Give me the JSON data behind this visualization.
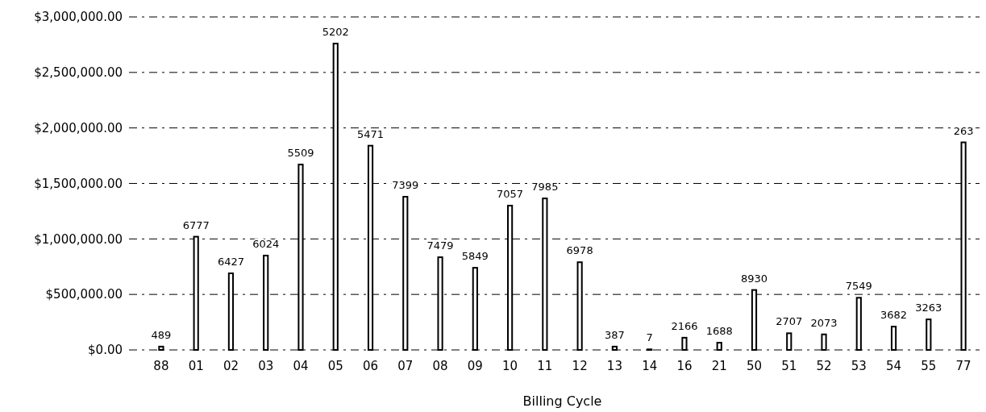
{
  "chart_data": {
    "type": "bar",
    "xlabel": "Billing Cycle",
    "categories": [
      "88",
      "01",
      "02",
      "03",
      "04",
      "05",
      "06",
      "07",
      "08",
      "09",
      "10",
      "11",
      "12",
      "13",
      "14",
      "16",
      "21",
      "50",
      "51",
      "52",
      "53",
      "54",
      "55",
      "77"
    ],
    "values": [
      30000,
      1020000,
      690000,
      850000,
      1670000,
      2760000,
      1840000,
      1380000,
      835000,
      740000,
      1300000,
      1365000,
      790000,
      30000,
      5000,
      110000,
      65000,
      540000,
      150000,
      140000,
      470000,
      210000,
      275000,
      1870000
    ],
    "color": "#ffffff",
    "ylim": [
      0,
      3000000
    ],
    "yticks": [
      {
        "value": 0,
        "label": "$0.00"
      },
      {
        "value": 500000,
        "label": "$500,000.00"
      },
      {
        "value": 1000000,
        "label": "$1,000,000.00"
      },
      {
        "value": 1500000,
        "label": "$1,500,000.00"
      },
      {
        "value": 2000000,
        "label": "$2,000,000.00"
      },
      {
        "value": 2500000,
        "label": "$2,500,000.00"
      },
      {
        "value": 3000000,
        "label": "$3,000,000.00"
      }
    ],
    "grid": "y",
    "annotations": [
      {
        "text": "489",
        "x": "88",
        "y": 30000
      },
      {
        "text": "6777",
        "x": "01",
        "y": 1020000
      },
      {
        "text": "6427",
        "x": "02",
        "y": 690000
      },
      {
        "text": "6024",
        "x": "03",
        "y": 850000
      },
      {
        "text": "5509",
        "x": "04",
        "y": 1670000
      },
      {
        "text": "5202",
        "x": "05",
        "y": 2760000
      },
      {
        "text": "5471",
        "x": "06",
        "y": 1840000
      },
      {
        "text": "7399",
        "x": "07",
        "y": 1380000
      },
      {
        "text": "7479",
        "x": "08",
        "y": 835000
      },
      {
        "text": "5849",
        "x": "09",
        "y": 740000
      },
      {
        "text": "7057",
        "x": "10",
        "y": 1300000
      },
      {
        "text": "7985",
        "x": "11",
        "y": 1365000
      },
      {
        "text": "6978",
        "x": "12",
        "y": 790000
      },
      {
        "text": "387",
        "x": "13",
        "y": 30000
      },
      {
        "text": "7",
        "x": "14",
        "y": 5000
      },
      {
        "text": "2166",
        "x": "16",
        "y": 110000
      },
      {
        "text": "1688",
        "x": "21",
        "y": 65000
      },
      {
        "text": "8930",
        "x": "50",
        "y": 540000
      },
      {
        "text": "2707",
        "x": "51",
        "y": 150000
      },
      {
        "text": "2073",
        "x": "52",
        "y": 140000
      },
      {
        "text": "7549",
        "x": "53",
        "y": 470000
      },
      {
        "text": "3682",
        "x": "54",
        "y": 210000
      },
      {
        "text": "3263",
        "x": "55",
        "y": 275000
      },
      {
        "text": "263",
        "x": "77",
        "y": 1870000
      }
    ]
  }
}
